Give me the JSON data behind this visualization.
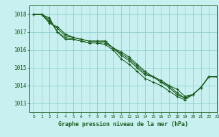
{
  "title": "Graphe pression niveau de la mer (hPa)",
  "bg_color": "#c8f0f0",
  "grid_color": "#88c8c8",
  "line_color": "#1a5c1a",
  "xlim": [
    -0.5,
    23
  ],
  "ylim": [
    1012.5,
    1018.5
  ],
  "yticks": [
    1013,
    1014,
    1015,
    1016,
    1017,
    1018
  ],
  "xticks": [
    0,
    1,
    2,
    3,
    4,
    5,
    6,
    7,
    8,
    9,
    10,
    11,
    12,
    13,
    14,
    15,
    16,
    17,
    18,
    19,
    20,
    21,
    22,
    23
  ],
  "series": [
    [
      1018.0,
      1018.0,
      1017.7,
      1017.0,
      1016.6,
      1016.6,
      1016.5,
      1016.4,
      1016.4,
      1016.4,
      1016.1,
      1015.9,
      1015.6,
      1015.2,
      1014.8,
      1014.5,
      1014.3,
      1014.0,
      1013.8,
      1013.4,
      1013.5,
      1013.9,
      1014.5,
      1014.5
    ],
    [
      1018.0,
      1018.0,
      1017.5,
      1017.3,
      1016.9,
      1016.7,
      1016.6,
      1016.5,
      1016.5,
      1016.5,
      1016.1,
      1015.7,
      1015.4,
      1015.0,
      1014.6,
      1014.5,
      1014.2,
      1013.9,
      1013.5,
      1013.3,
      1013.5,
      1013.9,
      1014.5,
      1014.5
    ],
    [
      1018.0,
      1018.0,
      1017.6,
      1017.2,
      1016.8,
      1016.7,
      1016.6,
      1016.5,
      1016.5,
      1016.5,
      1016.1,
      1015.8,
      1015.5,
      1015.1,
      1014.7,
      1014.5,
      1014.2,
      1014.0,
      1013.6,
      1013.3,
      1013.5,
      1013.9,
      1014.5,
      1014.5
    ],
    [
      1018.0,
      1018.0,
      1017.8,
      1017.0,
      1016.7,
      1016.6,
      1016.5,
      1016.4,
      1016.4,
      1016.3,
      1016.0,
      1015.5,
      1015.2,
      1014.8,
      1014.4,
      1014.2,
      1014.0,
      1013.7,
      1013.4,
      1013.2,
      1013.5,
      1013.9,
      1014.5,
      1014.5
    ]
  ]
}
